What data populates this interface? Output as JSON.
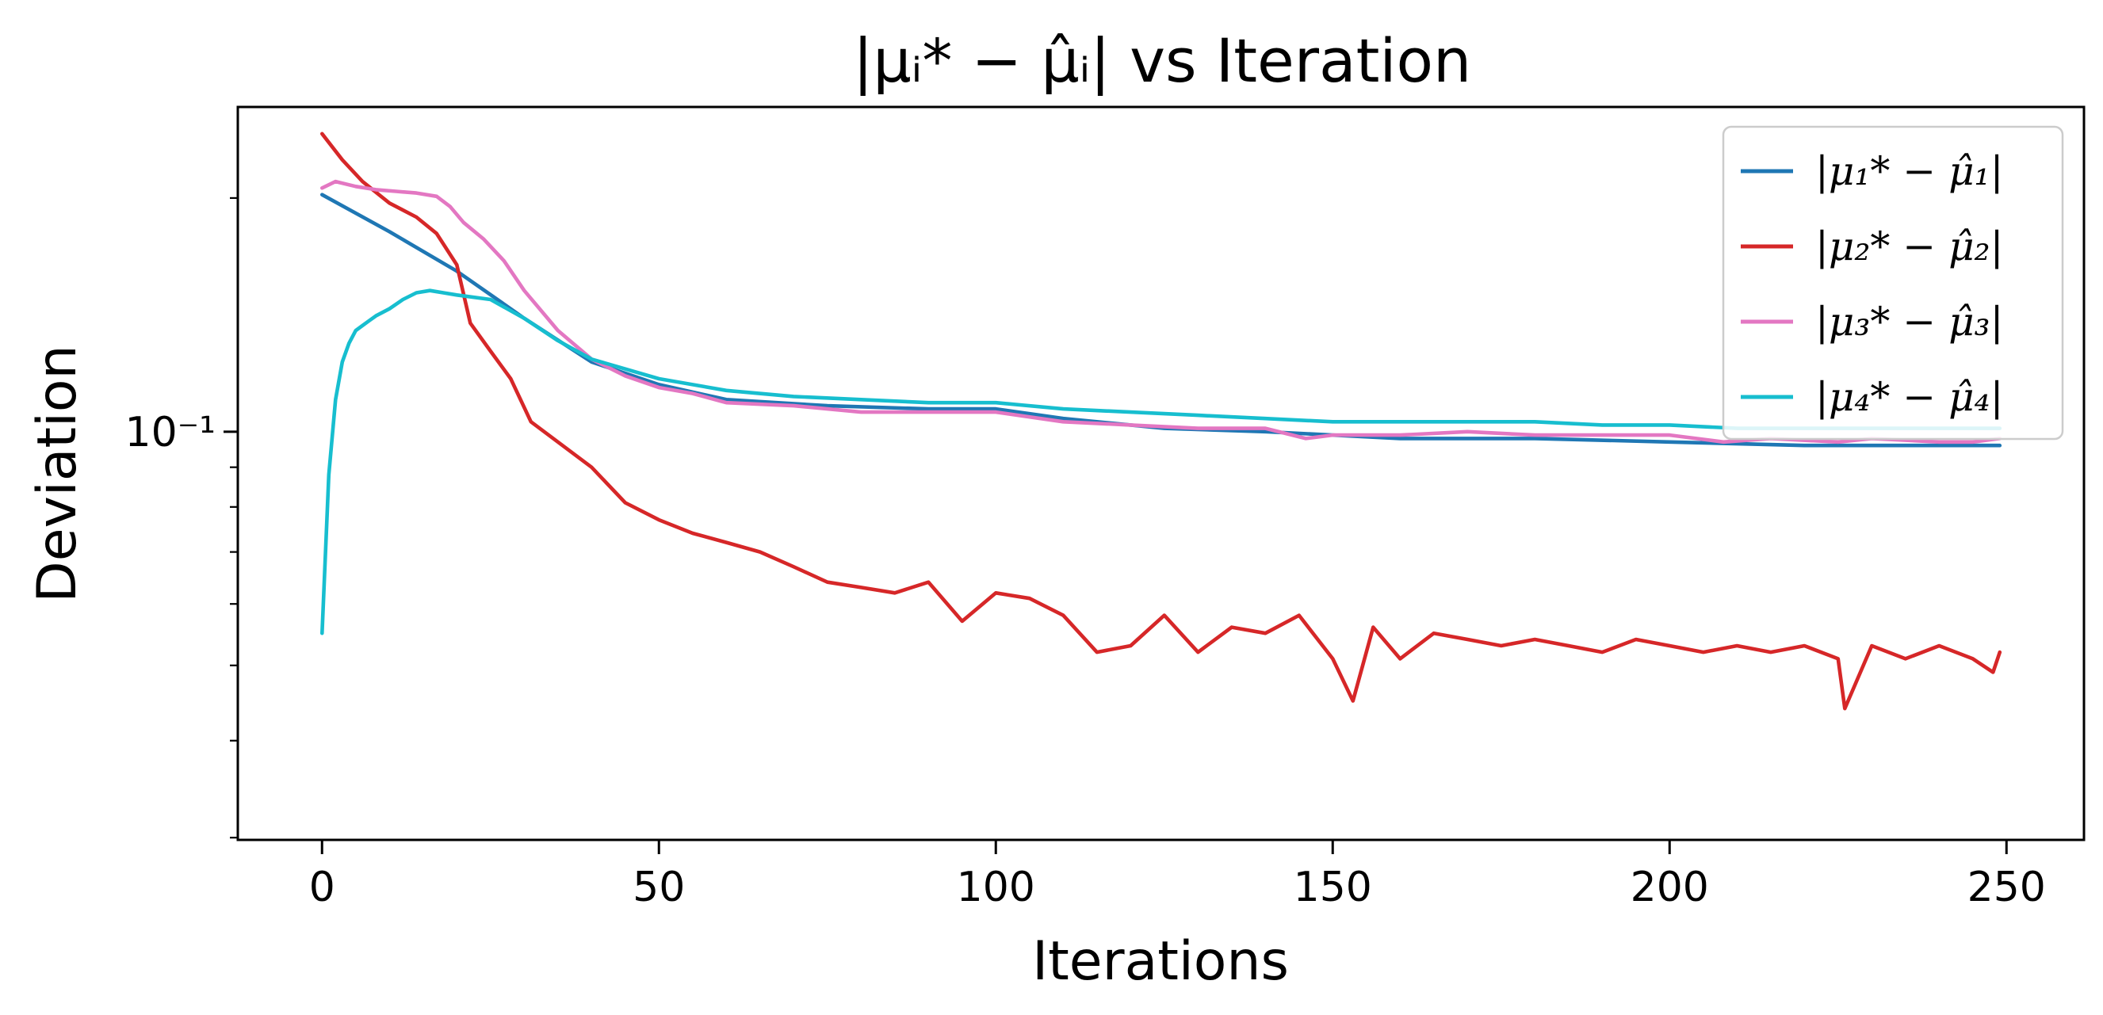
{
  "chart_data": {
    "type": "line",
    "title": "|μᵢ* − μ̂ᵢ| vs Iteration",
    "xlabel": "Iterations",
    "ylabel": "Deviation",
    "xlim": [
      -12.5,
      261.5
    ],
    "ylim": [
      0.0298,
      0.262
    ],
    "yscale": "log",
    "xticks": [
      0,
      50,
      100,
      150,
      200,
      250
    ],
    "yticks": [
      {
        "value": 0.1,
        "label": "10⁻¹"
      }
    ],
    "legend_position": "top-right",
    "series": [
      {
        "name": "|μ₁* − μ̂₁|",
        "color": "#1f77b4",
        "x": [
          0,
          10,
          20,
          30,
          40,
          50,
          60,
          75,
          90,
          100,
          110,
          125,
          140,
          160,
          180,
          200,
          220,
          249
        ],
        "y": [
          0.202,
          0.181,
          0.161,
          0.14,
          0.123,
          0.115,
          0.11,
          0.108,
          0.107,
          0.107,
          0.104,
          0.101,
          0.1,
          0.098,
          0.098,
          0.097,
          0.096,
          0.096
        ]
      },
      {
        "name": "|μ₂* − μ̂₂|",
        "color": "#d62728",
        "x": [
          0,
          3,
          6,
          10,
          14,
          17,
          20,
          22,
          25,
          28,
          31,
          35,
          40,
          45,
          50,
          55,
          60,
          65,
          70,
          75,
          80,
          85,
          90,
          95,
          100,
          105,
          110,
          115,
          120,
          125,
          130,
          135,
          140,
          145,
          150,
          153,
          156,
          160,
          165,
          170,
          175,
          180,
          185,
          190,
          195,
          200,
          205,
          210,
          215,
          220,
          225,
          226,
          230,
          235,
          240,
          245,
          248,
          249
        ],
        "y": [
          0.242,
          0.224,
          0.21,
          0.197,
          0.189,
          0.18,
          0.164,
          0.138,
          0.127,
          0.117,
          0.103,
          0.097,
          0.09,
          0.081,
          0.077,
          0.074,
          0.072,
          0.07,
          0.067,
          0.064,
          0.063,
          0.062,
          0.064,
          0.057,
          0.062,
          0.061,
          0.058,
          0.052,
          0.053,
          0.058,
          0.052,
          0.056,
          0.055,
          0.058,
          0.051,
          0.045,
          0.056,
          0.051,
          0.055,
          0.054,
          0.053,
          0.054,
          0.053,
          0.052,
          0.054,
          0.053,
          0.052,
          0.053,
          0.052,
          0.053,
          0.051,
          0.044,
          0.053,
          0.051,
          0.053,
          0.051,
          0.049,
          0.052
        ]
      },
      {
        "name": "|μ₃* − μ̂₃|",
        "color": "#e377c2",
        "x": [
          0,
          2,
          5,
          8,
          11,
          14,
          17,
          19,
          21,
          24,
          27,
          30,
          35,
          40,
          45,
          50,
          55,
          60,
          70,
          80,
          90,
          100,
          110,
          120,
          130,
          140,
          146,
          150,
          160,
          170,
          180,
          190,
          200,
          208,
          215,
          225,
          230,
          240,
          245,
          249
        ],
        "y": [
          0.206,
          0.21,
          0.207,
          0.205,
          0.204,
          0.203,
          0.201,
          0.195,
          0.186,
          0.177,
          0.166,
          0.152,
          0.135,
          0.124,
          0.118,
          0.114,
          0.112,
          0.109,
          0.108,
          0.106,
          0.106,
          0.106,
          0.103,
          0.102,
          0.101,
          0.101,
          0.098,
          0.099,
          0.099,
          0.1,
          0.099,
          0.099,
          0.099,
          0.097,
          0.098,
          0.097,
          0.098,
          0.097,
          0.097,
          0.098
        ]
      },
      {
        "name": "|μ₄* − μ̂₄|",
        "color": "#17becf",
        "x": [
          0,
          1,
          2,
          3,
          4,
          5,
          6,
          7,
          8,
          10,
          12,
          14,
          16,
          18,
          20,
          25,
          30,
          35,
          40,
          50,
          60,
          70,
          80,
          90,
          100,
          110,
          120,
          130,
          140,
          150,
          160,
          170,
          180,
          190,
          200,
          210,
          220,
          230,
          240,
          249
        ],
        "y": [
          0.055,
          0.088,
          0.11,
          0.123,
          0.13,
          0.135,
          0.137,
          0.139,
          0.141,
          0.144,
          0.148,
          0.151,
          0.152,
          0.151,
          0.15,
          0.148,
          0.14,
          0.131,
          0.124,
          0.117,
          0.113,
          0.111,
          0.11,
          0.109,
          0.109,
          0.107,
          0.106,
          0.105,
          0.104,
          0.103,
          0.103,
          0.103,
          0.103,
          0.102,
          0.102,
          0.101,
          0.101,
          0.101,
          0.101,
          0.101
        ]
      }
    ]
  }
}
